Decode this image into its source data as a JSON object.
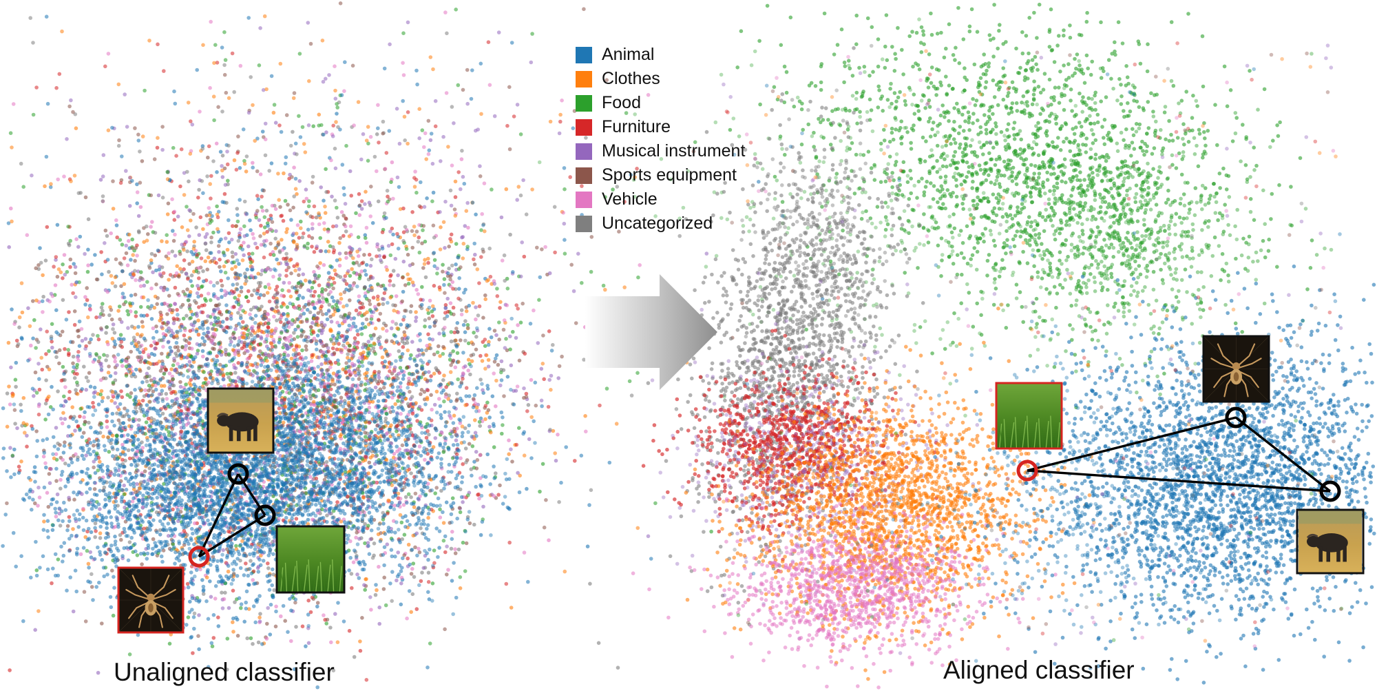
{
  "legend": [
    {
      "label": "Animal",
      "color": "#1f77b4"
    },
    {
      "label": "Clothes",
      "color": "#ff7f0e"
    },
    {
      "label": "Food",
      "color": "#2ca02c"
    },
    {
      "label": "Furniture",
      "color": "#d62728"
    },
    {
      "label": "Musical instrument",
      "color": "#9467bd"
    },
    {
      "label": "Sports equipment",
      "color": "#8c564b"
    },
    {
      "label": "Vehicle",
      "color": "#e377c2"
    },
    {
      "label": "Uncategorized",
      "color": "#7f7f7f"
    }
  ],
  "chart_data": [
    {
      "type": "scatter",
      "title": "Unaligned classifier",
      "grid": false,
      "axes_shown": false,
      "description_of_structure": "all categories intermixed; Animal points concentrated in lower-center",
      "highlighted_examples": [
        {
          "image": "spider",
          "marker": "red-circle"
        },
        {
          "image": "buffalo",
          "marker": "black-circle"
        },
        {
          "image": "grass",
          "marker": "black-circle"
        }
      ]
    },
    {
      "type": "scatter",
      "title": "Aligned classifier",
      "grid": false,
      "axes_shown": false,
      "clusters": [
        {
          "category": "Food",
          "position": "top"
        },
        {
          "category": "Uncategorized",
          "position": "upper-left"
        },
        {
          "category": "Furniture",
          "position": "left"
        },
        {
          "category": "Clothes",
          "position": "center-left"
        },
        {
          "category": "Vehicle",
          "position": "bottom-left"
        },
        {
          "category": "Animal",
          "position": "right"
        }
      ],
      "highlighted_examples": [
        {
          "image": "grass",
          "marker": "red-circle"
        },
        {
          "image": "spider",
          "marker": "black-circle"
        },
        {
          "image": "buffalo",
          "marker": "black-circle"
        }
      ]
    }
  ],
  "images": [
    {
      "name": "spider",
      "icon": "spider-icon"
    },
    {
      "name": "buffalo",
      "icon": "buffalo-icon"
    },
    {
      "name": "grass",
      "icon": "grass-icon"
    }
  ],
  "transition": {
    "icon": "arrow-right-icon",
    "color": "#9a9a9a"
  }
}
